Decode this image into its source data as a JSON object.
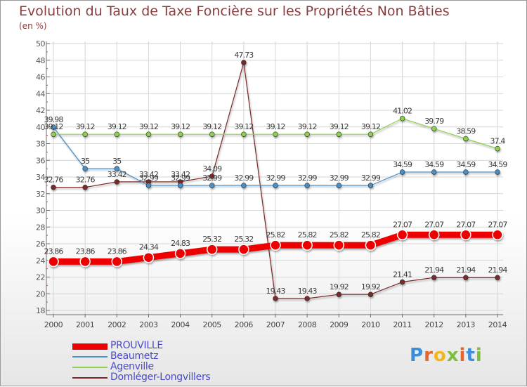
{
  "title": "Evolution du Taux de Taxe Foncière sur les Propriétés Non Bâties",
  "unit": "(en %)",
  "logo_text": "Proxiti",
  "logo_colors": [
    "#3a8fd6",
    "#e8662a",
    "#f3b51b",
    "#7bbf3a",
    "#e8662a",
    "#3a8fd6",
    "#7bbf3a"
  ],
  "chart_data": {
    "type": "line",
    "title": "Evolution du Taux de Taxe Foncière sur les Propriétés Non Bâties",
    "ylabel": "(en %)",
    "xlabel": "",
    "ylim": [
      18,
      50
    ],
    "yticks": [
      18,
      20,
      22,
      24,
      26,
      28,
      30,
      32,
      34,
      36,
      38,
      40,
      42,
      44,
      46,
      48,
      50
    ],
    "categories": [
      "2000",
      "2001",
      "2002",
      "2003",
      "2004",
      "2005",
      "2006",
      "2007",
      "2008",
      "2009",
      "2010",
      "2011",
      "2012",
      "2013",
      "2014"
    ],
    "grid": true,
    "series": [
      {
        "name": "PROUVILLE",
        "color": "#ee0000",
        "values": [
          23.86,
          23.86,
          23.86,
          24.34,
          24.83,
          25.32,
          25.32,
          25.82,
          25.82,
          25.82,
          25.82,
          27.07,
          27.07,
          27.07,
          27.07
        ],
        "labels": [
          "23.86",
          "23.86",
          "23.86",
          "24.34",
          "24.83",
          "25.32",
          "25.32",
          "25.82",
          "25.82",
          "25.82",
          "25.82",
          "27.07",
          "27.07",
          "27.07",
          "27.07"
        ]
      },
      {
        "name": "Beaumetz",
        "color": "#4a8fc7",
        "values": [
          39.98,
          35,
          35,
          32.99,
          32.99,
          32.99,
          32.99,
          32.99,
          32.99,
          32.99,
          32.99,
          34.59,
          34.59,
          34.59,
          34.59
        ],
        "labels": [
          "39.98",
          "35",
          "35",
          "32.99",
          "32.99",
          "32.99",
          "32.99",
          "32.99",
          "32.99",
          "32.99",
          "32.99",
          "34.59",
          "34.59",
          "34.59",
          "34.59"
        ]
      },
      {
        "name": "Agenville",
        "color": "#8fd14f",
        "values": [
          39.12,
          39.12,
          39.12,
          39.12,
          39.12,
          39.12,
          39.12,
          39.12,
          39.12,
          39.12,
          39.12,
          41.02,
          39.79,
          38.59,
          37.4
        ],
        "labels": [
          "39.12",
          "39.12",
          "39.12",
          "39.12",
          "39.12",
          "39.12",
          "39.12",
          "39.12",
          "39.12",
          "39.12",
          "39.12",
          "41.02",
          "39.79",
          "38.59",
          "37.4"
        ]
      },
      {
        "name": "Domléger-Longvillers",
        "color": "#7a2a2a",
        "values": [
          32.76,
          32.76,
          33.42,
          33.42,
          33.42,
          34.09,
          47.73,
          19.43,
          19.43,
          19.92,
          19.92,
          21.41,
          21.94,
          21.94,
          21.94
        ],
        "labels": [
          "32.76",
          "32.76",
          "33.42",
          "33.42",
          "33.42",
          "34.09",
          "47.73",
          "19.43",
          "19.43",
          "19.92",
          "19.92",
          "21.41",
          "21.94",
          "21.94",
          "21.94"
        ]
      }
    ]
  }
}
